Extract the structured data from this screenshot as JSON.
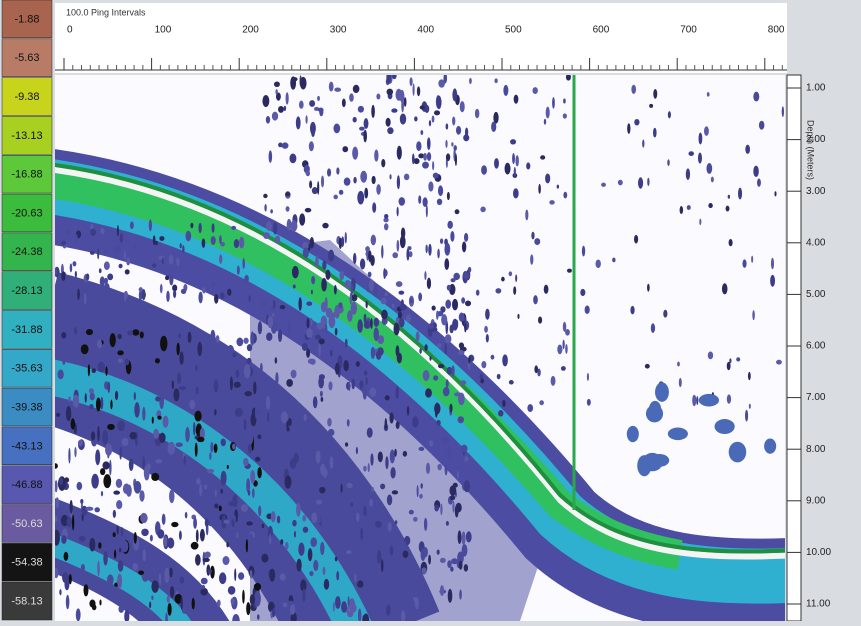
{
  "color_scale": {
    "labels": [
      "-1.88",
      "-5.63",
      "-9.38",
      "-13.13",
      "-16.88",
      "-20.63",
      "-24.38",
      "-28.13",
      "-31.88",
      "-35.63",
      "-39.38",
      "-43.13",
      "-46.88",
      "-50.63",
      "-54.38",
      "-58.13"
    ]
  },
  "top_axis": {
    "title": "100.0 Ping Intervals",
    "labels": [
      "0",
      "100",
      "200",
      "300",
      "400",
      "500",
      "600",
      "700",
      "800"
    ]
  },
  "right_axis": {
    "title": "Depth (Meters)",
    "labels": [
      "1.00",
      "2.00",
      "3.00",
      "4.00",
      "5.00",
      "6.00",
      "7.00",
      "8.00",
      "9.00",
      "10.00",
      "11.00"
    ]
  }
}
